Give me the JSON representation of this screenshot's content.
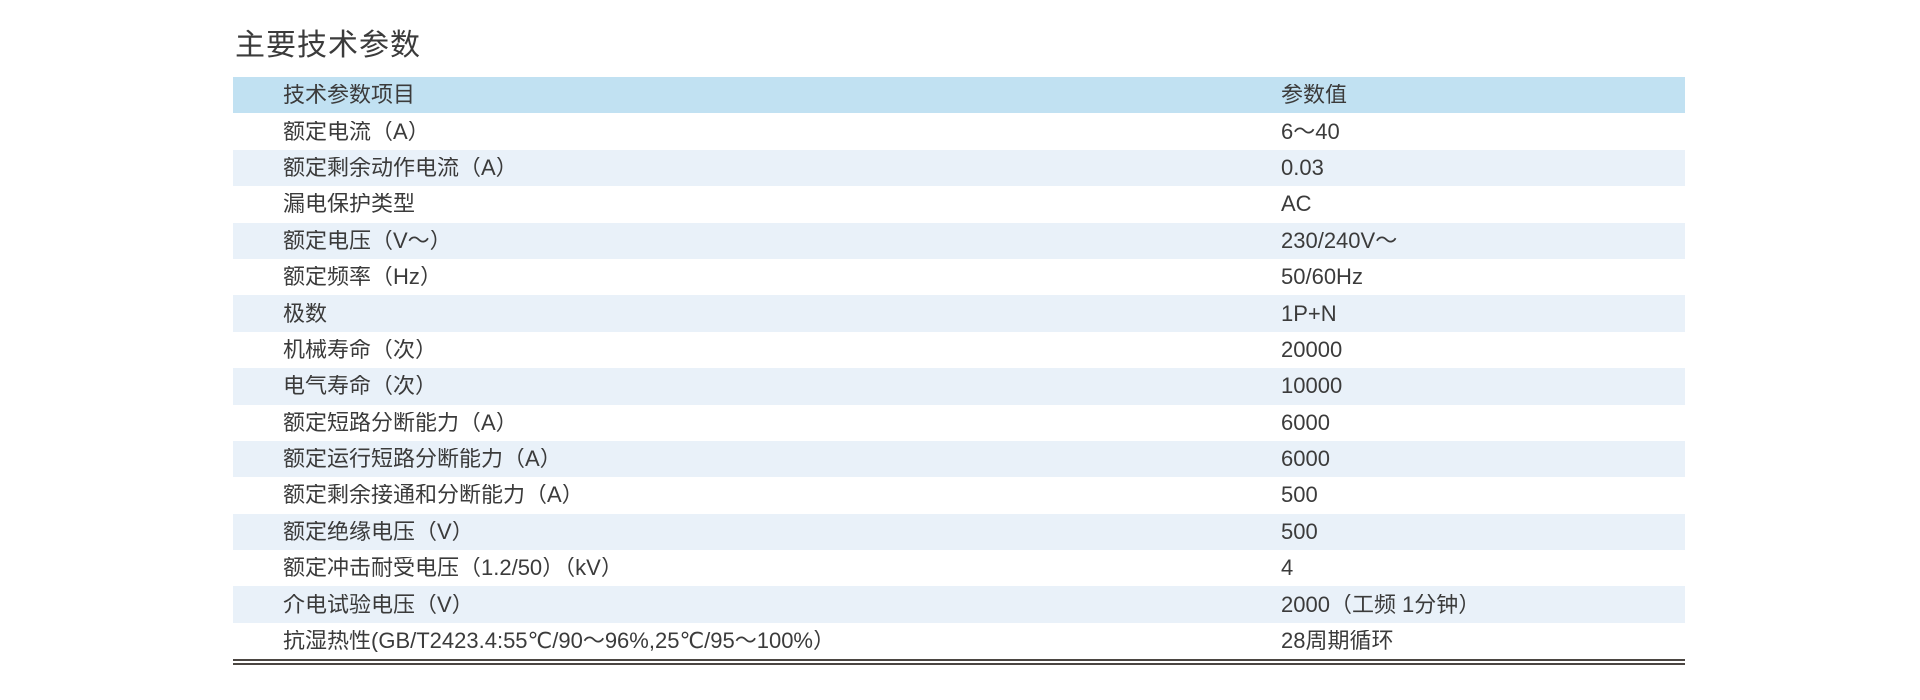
{
  "title": "主要技术参数",
  "colors": {
    "header_bg": "#c1e1f2",
    "alt_row_bg": "#e9f1f9",
    "text": "#3b3b3b",
    "rule_line": "#4b4642",
    "page_bg": "#ffffff"
  },
  "table": {
    "header": {
      "item": "技术参数项目",
      "value": "参数值"
    },
    "rows": [
      {
        "label": "额定电流（A）",
        "value": "6～40"
      },
      {
        "label": "额定剩余动作电流（A）",
        "value": "0.03"
      },
      {
        "label": "漏电保护类型",
        "value": "AC"
      },
      {
        "label": "额定电压（V～）",
        "value": "230/240V～"
      },
      {
        "label": "额定频率（Hz）",
        "value": "50/60Hz"
      },
      {
        "label": "极数",
        "value": "1P+N"
      },
      {
        "label": "机械寿命（次）",
        "value": "20000"
      },
      {
        "label": "电气寿命（次）",
        "value": "10000"
      },
      {
        "label": "额定短路分断能力（A）",
        "value": "6000"
      },
      {
        "label": "额定运行短路分断能力（A）",
        "value": "6000"
      },
      {
        "label": "额定剩余接通和分断能力（A）",
        "value": "500"
      },
      {
        "label": "额定绝缘电压（V）",
        "value": "500"
      },
      {
        "label": "额定冲击耐受电压（1.2/50）（kV）",
        "value": "4"
      },
      {
        "label": "介电试验电压（V）",
        "value": "2000（工频 1分钟）"
      },
      {
        "label": "抗湿热性(GB/T2423.4:55℃/90～96%,25℃/95～100%）",
        "value": "28周期循环"
      }
    ]
  }
}
